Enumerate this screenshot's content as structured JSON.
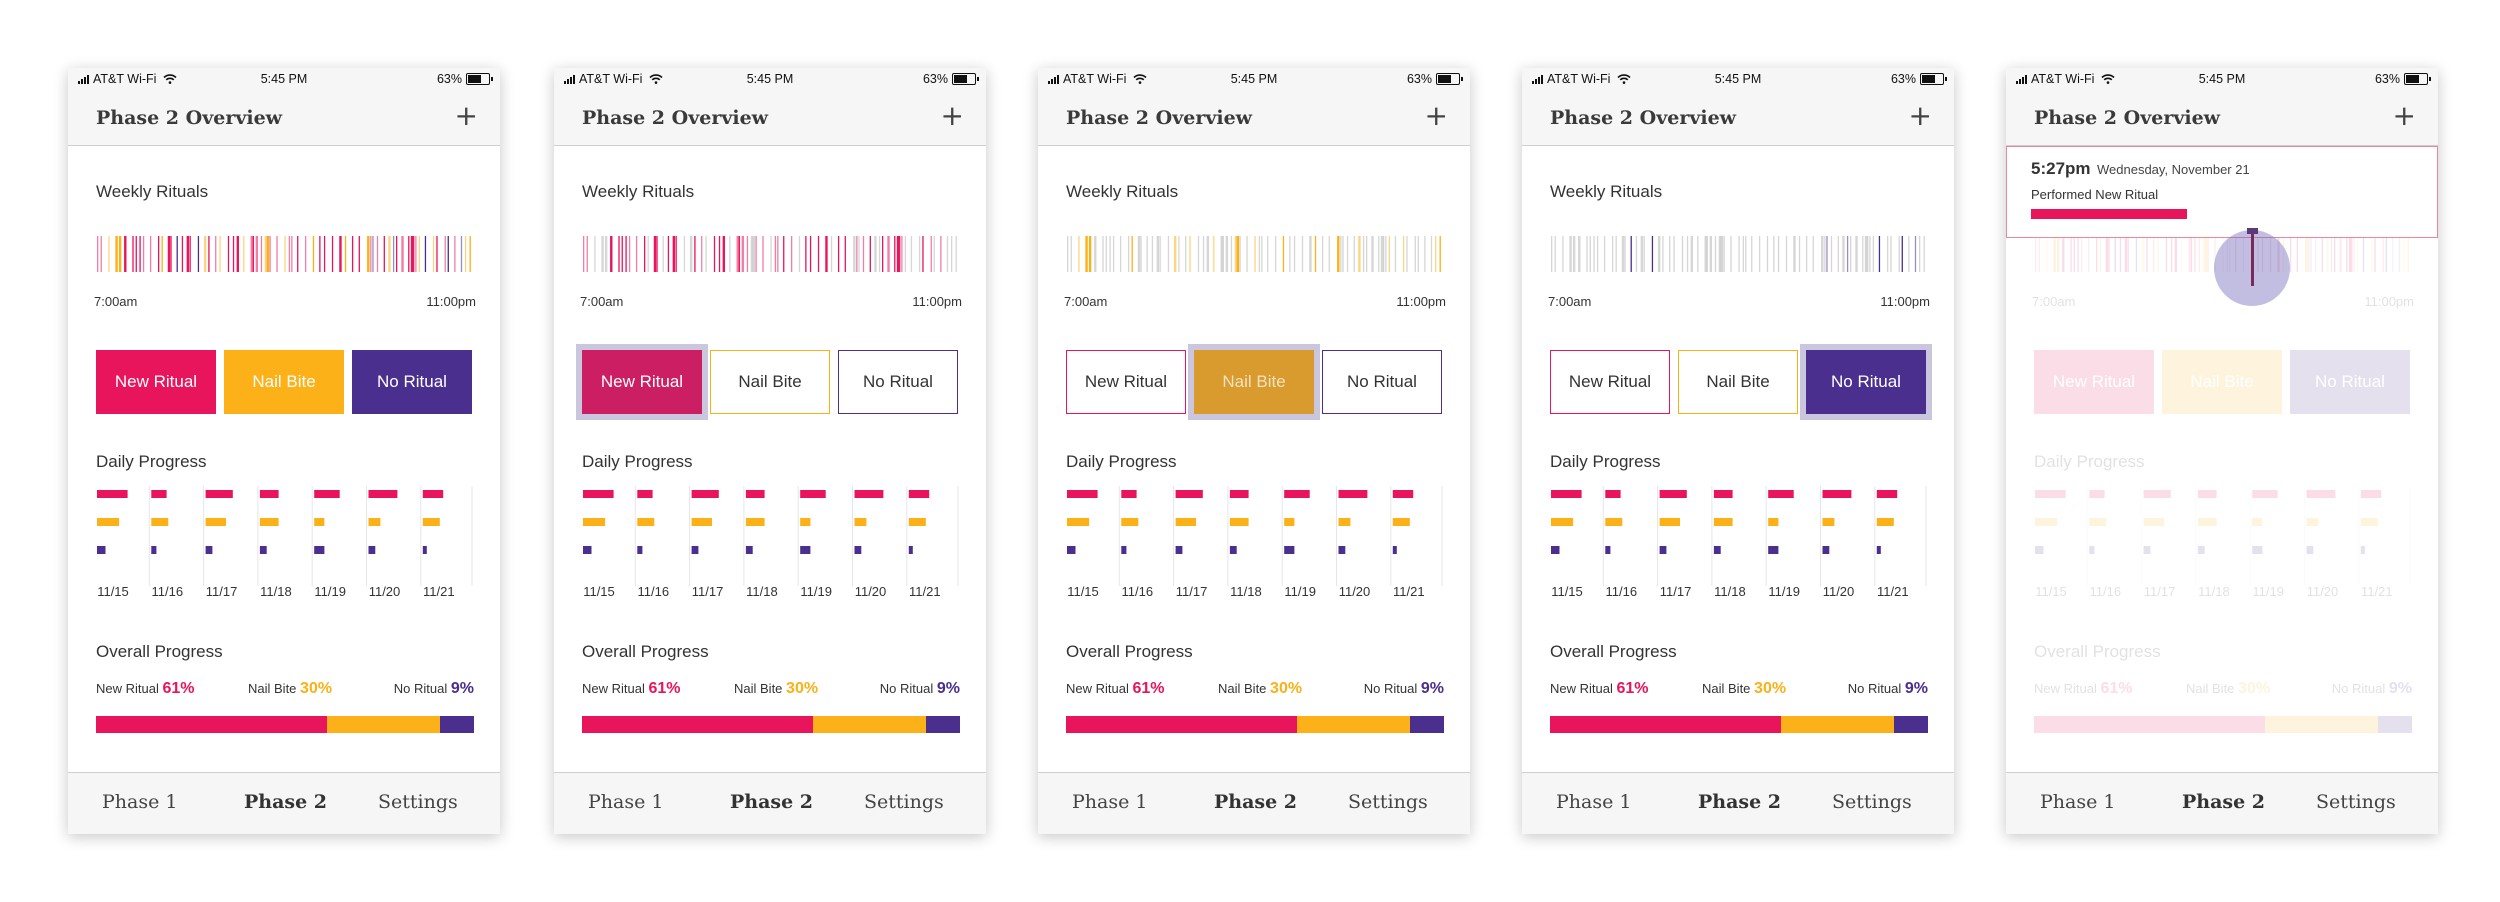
{
  "screens": [
    {
      "status": {
        "carrier": "AT&T Wi-Fi",
        "time": "5:45 PM",
        "battery": "63%"
      },
      "title": "Phase 2 Overview",
      "add": "+",
      "weekly_label": "Weekly Rituals",
      "time_start": "7:00am",
      "time_end": "11:00pm",
      "filters": [
        "New Ritual",
        "Nail Bite",
        "No Ritual"
      ],
      "selected_filter": "none",
      "daily_label": "Daily Progress",
      "dates": [
        "11/15",
        "11/16",
        "11/17",
        "11/18",
        "11/19",
        "11/20",
        "11/21"
      ],
      "overall_label": "Overall Progress",
      "overall": [
        {
          "label": "New Ritual",
          "value": "61%"
        },
        {
          "label": "Nail Bite",
          "value": "30%"
        },
        {
          "label": "No Ritual",
          "value": "9%"
        }
      ],
      "tabs": [
        "Phase 1",
        "Phase 2",
        "Settings"
      ]
    },
    {
      "status": {
        "carrier": "AT&T Wi-Fi",
        "time": "5:45 PM",
        "battery": "63%"
      },
      "title": "Phase 2 Overview",
      "add": "+",
      "weekly_label": "Weekly Rituals",
      "time_start": "7:00am",
      "time_end": "11:00pm",
      "filters": [
        "New Ritual",
        "Nail Bite",
        "No Ritual"
      ],
      "selected_filter": "New Ritual",
      "daily_label": "Daily Progress",
      "dates": [
        "11/15",
        "11/16",
        "11/17",
        "11/18",
        "11/19",
        "11/20",
        "11/21"
      ],
      "overall_label": "Overall Progress",
      "overall": [
        {
          "label": "New Ritual",
          "value": "61%"
        },
        {
          "label": "Nail Bite",
          "value": "30%"
        },
        {
          "label": "No Ritual",
          "value": "9%"
        }
      ],
      "tabs": [
        "Phase 1",
        "Phase 2",
        "Settings"
      ]
    },
    {
      "status": {
        "carrier": "AT&T Wi-Fi",
        "time": "5:45 PM",
        "battery": "63%"
      },
      "title": "Phase 2 Overview",
      "add": "+",
      "weekly_label": "Weekly Rituals",
      "time_start": "7:00am",
      "time_end": "11:00pm",
      "filters": [
        "New Ritual",
        "Nail Bite",
        "No Ritual"
      ],
      "selected_filter": "Nail Bite",
      "daily_label": "Daily Progress",
      "dates": [
        "11/15",
        "11/16",
        "11/17",
        "11/18",
        "11/19",
        "11/20",
        "11/21"
      ],
      "overall_label": "Overall Progress",
      "overall": [
        {
          "label": "New Ritual",
          "value": "61%"
        },
        {
          "label": "Nail Bite",
          "value": "30%"
        },
        {
          "label": "No Ritual",
          "value": "9%"
        }
      ],
      "tabs": [
        "Phase 1",
        "Phase 2",
        "Settings"
      ]
    },
    {
      "status": {
        "carrier": "AT&T Wi-Fi",
        "time": "5:45 PM",
        "battery": "63%"
      },
      "title": "Phase 2 Overview",
      "add": "+",
      "weekly_label": "Weekly Rituals",
      "time_start": "7:00am",
      "time_end": "11:00pm",
      "filters": [
        "New Ritual",
        "Nail Bite",
        "No Ritual"
      ],
      "selected_filter": "No Ritual",
      "daily_label": "Daily Progress",
      "dates": [
        "11/15",
        "11/16",
        "11/17",
        "11/18",
        "11/19",
        "11/20",
        "11/21"
      ],
      "overall_label": "Overall Progress",
      "overall": [
        {
          "label": "New Ritual",
          "value": "61%"
        },
        {
          "label": "Nail Bite",
          "value": "30%"
        },
        {
          "label": "No Ritual",
          "value": "9%"
        }
      ],
      "tabs": [
        "Phase 1",
        "Phase 2",
        "Settings"
      ]
    },
    {
      "status": {
        "carrier": "AT&T Wi-Fi",
        "time": "5:45 PM",
        "battery": "63%"
      },
      "title": "Phase 2 Overview",
      "add": "+",
      "weekly_label": "Weekly Rituals",
      "time_start": "7:00am",
      "time_end": "11:00pm",
      "filters": [
        "New Ritual",
        "Nail Bite",
        "No Ritual"
      ],
      "selected_filter": "none",
      "daily_label": "Daily Progress",
      "dates": [
        "11/15",
        "11/16",
        "11/17",
        "11/18",
        "11/19",
        "11/20",
        "11/21"
      ],
      "overall_label": "Overall Progress",
      "overall": [
        {
          "label": "New Ritual",
          "value": "61%"
        },
        {
          "label": "Nail Bite",
          "value": "30%"
        },
        {
          "label": "No Ritual",
          "value": "9%"
        }
      ],
      "tabs": [
        "Phase 1",
        "Phase 2",
        "Settings"
      ],
      "tooltip": {
        "time": "5:27pm",
        "date": "Wednesday, November 21",
        "message": "Performed New Ritual"
      }
    }
  ],
  "colors": {
    "new_ritual": "#e8145c",
    "nail_bite": "#fbb117",
    "no_ritual": "#4a2f8e",
    "new_ritual_selected": "#cc1f63",
    "nail_bite_selected": "#d99a2e",
    "no_ritual_selected": "#4a2f8e",
    "selection_halo": "#c9c6dd"
  },
  "overall_fractions": {
    "new_ritual": 0.61,
    "nail_bite": 0.3,
    "no_ritual": 0.09
  },
  "daily_fractions": {
    "new_ritual": [
      0.9,
      0.45,
      0.8,
      0.55,
      0.75,
      0.85,
      0.6
    ],
    "nail_bite": [
      0.65,
      0.5,
      0.6,
      0.55,
      0.3,
      0.35,
      0.5
    ],
    "no_ritual": [
      0.25,
      0.15,
      0.2,
      0.2,
      0.3,
      0.2,
      0.1
    ]
  }
}
